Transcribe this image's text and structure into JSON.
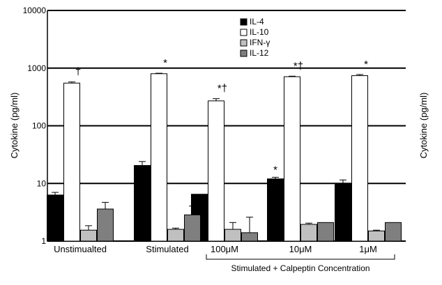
{
  "chart_data": {
    "type": "bar",
    "yscale": "log",
    "ylim": [
      1,
      10000
    ],
    "yticks": [
      {
        "value": 1,
        "label": "1"
      },
      {
        "value": 10,
        "label": "10"
      },
      {
        "value": 100,
        "label": "100"
      },
      {
        "value": 1000,
        "label": "1000"
      },
      {
        "value": 10000,
        "label": "10000"
      }
    ],
    "ylabel": "Cytokine (pg/ml)",
    "ylabel_right": "Cytokine (pg/ml)",
    "grid": true,
    "categories": [
      "Unstimualted",
      "Stimulated",
      "100μM",
      "10μM",
      "1μM"
    ],
    "group_label": "Stimulated + Calpeptin Concentration",
    "legend_position": "top-center",
    "series": [
      {
        "name": "IL-4",
        "color": "#000000",
        "values": [
          6.3,
          20.5,
          6.5,
          12.0,
          10.0
        ],
        "errors": [
          0.7,
          3.5,
          0,
          0.8,
          1.5
        ]
      },
      {
        "name": "IL-10",
        "color": "#ffffff",
        "values": [
          550,
          800,
          270,
          710,
          740
        ],
        "errors": [
          25,
          15,
          25,
          15,
          35
        ]
      },
      {
        "name": "IFN-γ",
        "color": "#c0c0c0",
        "values": [
          1.55,
          1.6,
          1.6,
          1.95,
          1.5
        ],
        "errors": [
          0.3,
          0.08,
          0.5,
          0.1,
          0.05
        ]
      },
      {
        "name": "IL-12",
        "color": "#7f7f7f",
        "values": [
          3.6,
          2.85,
          1.4,
          2.1,
          2.1
        ],
        "errors": [
          1.1,
          1.2,
          1.2,
          0,
          0
        ]
      }
    ],
    "annotations": [
      {
        "category": 0,
        "text": "†"
      },
      {
        "category": 1,
        "text": "*"
      },
      {
        "category": 2,
        "text": "*†"
      },
      {
        "category": 3,
        "text": "*†"
      },
      {
        "category": 4,
        "text": "*"
      },
      {
        "category": 3,
        "series": 0,
        "text": "*"
      }
    ]
  }
}
